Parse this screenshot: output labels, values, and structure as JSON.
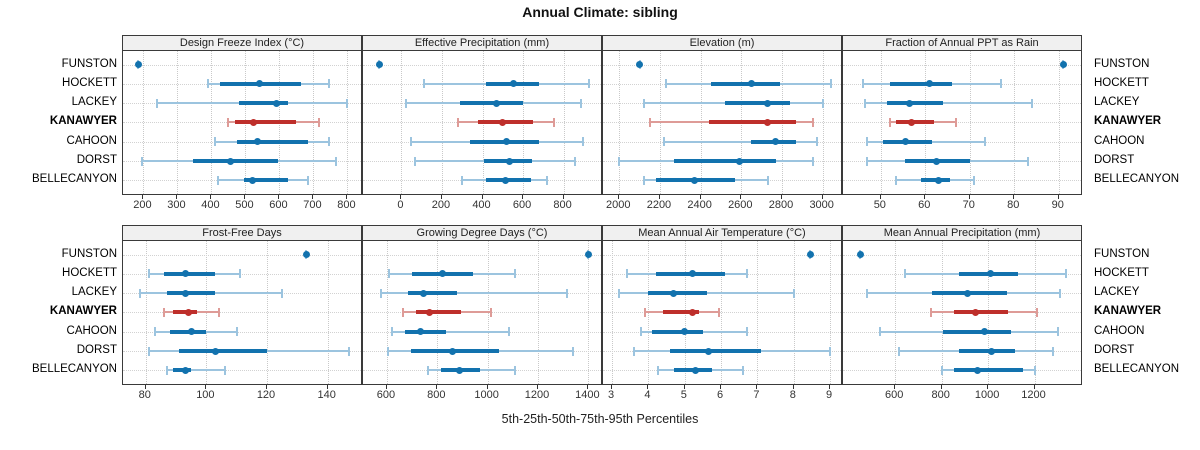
{
  "title": "Annual Climate: sibling",
  "caption": "5th-25th-50th-75th-95th Percentiles",
  "colors": {
    "blue": "#1272AE",
    "blue_light": "#9CC4DF",
    "red": "#BE2F2B",
    "red_light": "#DE9B97",
    "strip_bg": "#F0F0F0",
    "border": "#3a3a3a",
    "grid": "#c9c9c9"
  },
  "chart_data": {
    "type": "dotplot-percentiles",
    "percentiles": [
      5,
      25,
      50,
      75,
      95
    ],
    "sites": [
      "FUNSTON",
      "HOCKETT",
      "LACKEY",
      "KANAWYER",
      "CAHOON",
      "DORST",
      "BELLECANYON"
    ],
    "highlight_site": "KANAWYER",
    "layout": {
      "rows": 2,
      "cols": 4,
      "grid": "dotted",
      "site_labels": "left-and-right"
    },
    "panels": [
      {
        "title": "Design Freeze Index (°C)",
        "row": 0,
        "col": 0,
        "ticks": [
          200,
          300,
          400,
          500,
          600,
          700,
          800
        ],
        "domain": [
          140,
          840
        ],
        "values": {
          "FUNSTON": [
            185,
            185,
            185,
            185,
            185
          ],
          "HOCKETT": [
            390,
            425,
            540,
            665,
            745
          ],
          "LACKEY": [
            240,
            480,
            590,
            625,
            800
          ],
          "KANAWYER": [
            450,
            470,
            525,
            650,
            715
          ],
          "CAHOON": [
            410,
            475,
            535,
            685,
            745
          ],
          "DORST": [
            195,
            345,
            455,
            595,
            765
          ],
          "BELLECANYON": [
            420,
            495,
            520,
            625,
            685
          ]
        }
      },
      {
        "title": "Effective Precipitation (mm)",
        "row": 0,
        "col": 1,
        "ticks": [
          0,
          200,
          400,
          600,
          800
        ],
        "domain": [
          -190,
          985
        ],
        "values": {
          "FUNSTON": [
            -110,
            -110,
            -110,
            -110,
            -110
          ],
          "HOCKETT": [
            110,
            415,
            555,
            680,
            925
          ],
          "LACKEY": [
            20,
            290,
            470,
            600,
            885
          ],
          "KANAWYER": [
            280,
            380,
            500,
            650,
            755
          ],
          "CAHOON": [
            45,
            340,
            520,
            680,
            895
          ],
          "DORST": [
            65,
            405,
            535,
            645,
            855
          ],
          "BELLECANYON": [
            300,
            415,
            515,
            640,
            720
          ]
        }
      },
      {
        "title": "Elevation (m)",
        "row": 0,
        "col": 2,
        "ticks": [
          2000,
          2200,
          2400,
          2600,
          2800,
          3000
        ],
        "domain": [
          1920,
          3090
        ],
        "values": {
          "FUNSTON": [
            2100,
            2100,
            2100,
            2100,
            2100
          ],
          "HOCKETT": [
            2230,
            2450,
            2650,
            2790,
            3040
          ],
          "LACKEY": [
            2120,
            2520,
            2730,
            2840,
            3000
          ],
          "KANAWYER": [
            2150,
            2440,
            2730,
            2870,
            2950
          ],
          "CAHOON": [
            2220,
            2650,
            2770,
            2870,
            2970
          ],
          "DORST": [
            2000,
            2270,
            2590,
            2770,
            2950
          ],
          "BELLECANYON": [
            2120,
            2180,
            2370,
            2570,
            2730
          ]
        }
      },
      {
        "title": "Fraction of Annual PPT as Rain",
        "row": 0,
        "col": 3,
        "ticks": [
          50,
          60,
          70,
          80,
          90
        ],
        "domain": [
          41.5,
          95
        ],
        "values": {
          "FUNSTON": [
            91,
            91,
            91,
            91,
            91
          ],
          "HOCKETT": [
            46,
            52,
            61,
            66,
            77
          ],
          "LACKEY": [
            46.5,
            51.5,
            56.5,
            64,
            84
          ],
          "KANAWYER": [
            52,
            53.5,
            57,
            62,
            67
          ],
          "CAHOON": [
            47,
            50.5,
            55.5,
            61.5,
            73.5
          ],
          "DORST": [
            47,
            55.5,
            62.5,
            70,
            83
          ],
          "BELLECANYON": [
            53.5,
            59,
            63,
            65.5,
            71
          ]
        }
      },
      {
        "title": "Frost-Free Days",
        "row": 1,
        "col": 0,
        "ticks": [
          80,
          100,
          120,
          140
        ],
        "domain": [
          72.5,
          151
        ],
        "values": {
          "FUNSTON": [
            133,
            133,
            133,
            133,
            133
          ],
          "HOCKETT": [
            81,
            86,
            93,
            103,
            111
          ],
          "LACKEY": [
            78,
            87,
            93,
            103,
            125
          ],
          "KANAWYER": [
            86,
            89,
            94,
            97,
            104
          ],
          "CAHOON": [
            83,
            88,
            95,
            100,
            110
          ],
          "DORST": [
            81,
            91,
            103,
            120,
            147
          ],
          "BELLECANYON": [
            87,
            89,
            93,
            95,
            106
          ]
        }
      },
      {
        "title": "Growing Degree Days (°C)",
        "row": 1,
        "col": 1,
        "ticks": [
          600,
          800,
          1000,
          1200,
          1400
        ],
        "domain": [
          505,
          1450
        ],
        "values": {
          "FUNSTON": [
            1400,
            1400,
            1400,
            1400,
            1400
          ],
          "HOCKETT": [
            610,
            700,
            820,
            940,
            1110
          ],
          "LACKEY": [
            575,
            685,
            745,
            880,
            1315
          ],
          "KANAWYER": [
            665,
            715,
            770,
            895,
            1015
          ],
          "CAHOON": [
            620,
            670,
            735,
            835,
            1085
          ],
          "DORST": [
            605,
            695,
            860,
            1045,
            1340
          ],
          "BELLECANYON": [
            765,
            815,
            890,
            970,
            1110
          ]
        }
      },
      {
        "title": "Mean Annual Air Temperature (°C)",
        "row": 1,
        "col": 2,
        "ticks": [
          3,
          4,
          5,
          6,
          7,
          8,
          9
        ],
        "domain": [
          2.75,
          9.3
        ],
        "values": {
          "FUNSTON": [
            8.45,
            8.45,
            8.45,
            8.45,
            8.45
          ],
          "HOCKETT": [
            3.4,
            4.2,
            5.2,
            6.1,
            6.7
          ],
          "LACKEY": [
            3.2,
            4.0,
            4.7,
            5.6,
            8.0
          ],
          "KANAWYER": [
            3.9,
            4.4,
            5.2,
            5.4,
            5.95
          ],
          "CAHOON": [
            3.8,
            4.1,
            5.0,
            5.5,
            6.7
          ],
          "DORST": [
            3.6,
            4.6,
            5.65,
            7.1,
            9.0
          ],
          "BELLECANYON": [
            4.25,
            4.7,
            5.3,
            5.75,
            6.6
          ]
        }
      },
      {
        "title": "Mean Annual Precipitation (mm)",
        "row": 1,
        "col": 3,
        "ticks": [
          600,
          800,
          1000,
          1200
        ],
        "domain": [
          375,
          1400
        ],
        "values": {
          "FUNSTON": [
            450,
            450,
            450,
            450,
            450
          ],
          "HOCKETT": [
            640,
            875,
            1010,
            1130,
            1335
          ],
          "LACKEY": [
            480,
            760,
            910,
            1080,
            1310
          ],
          "KANAWYER": [
            755,
            855,
            945,
            1085,
            1210
          ],
          "CAHOON": [
            535,
            805,
            985,
            1100,
            1300
          ],
          "DORST": [
            615,
            875,
            1015,
            1115,
            1280
          ],
          "BELLECANYON": [
            800,
            855,
            955,
            1150,
            1200
          ]
        }
      }
    ]
  }
}
